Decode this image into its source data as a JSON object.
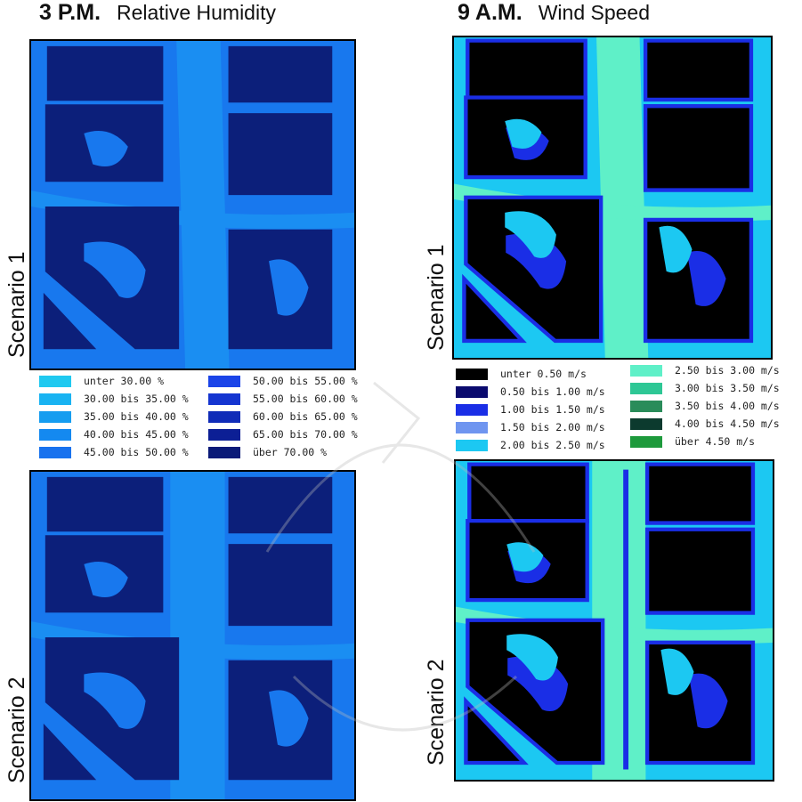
{
  "panels": {
    "left": {
      "time": "3 P.M.",
      "variable": "Relative Humidity"
    },
    "right": {
      "time": "9 A.M.",
      "variable": "Wind Speed"
    }
  },
  "scenarios": [
    "Scenario 1",
    "Scenario 2"
  ],
  "legends": {
    "humidity": [
      {
        "label": "unter 30.00 %",
        "color": "#1fc9f0"
      },
      {
        "label": "30.00 bis 35.00 %",
        "color": "#19b3f2"
      },
      {
        "label": "35.00 bis 40.00 %",
        "color": "#169df0"
      },
      {
        "label": "40.00 bis 45.00 %",
        "color": "#1489f0"
      },
      {
        "label": "45.00 bis 50.00 %",
        "color": "#1872ee"
      },
      {
        "label": "50.00 bis 55.00 %",
        "color": "#1a44e8"
      },
      {
        "label": "55.00 bis 60.00 %",
        "color": "#1535d0"
      },
      {
        "label": "60.00 bis 65.00 %",
        "color": "#102cb8"
      },
      {
        "label": "65.00 bis 70.00 %",
        "color": "#0c1f95"
      },
      {
        "label": "über 70.00 %",
        "color": "#0a1a78"
      }
    ],
    "wind": [
      {
        "label": "unter 0.50 m/s",
        "color": "#000000"
      },
      {
        "label": "0.50 bis 1.00 m/s",
        "color": "#0a0a6e"
      },
      {
        "label": "1.00 bis 1.50 m/s",
        "color": "#1a2ee6"
      },
      {
        "label": "1.50 bis 2.00 m/s",
        "color": "#6f95f0"
      },
      {
        "label": "2.00 bis 2.50 m/s",
        "color": "#1cc8f2"
      },
      {
        "label": "2.50 bis 3.00 m/s",
        "color": "#5ff0c8"
      },
      {
        "label": "3.00 bis 3.50 m/s",
        "color": "#2ec795"
      },
      {
        "label": "3.50 bis 4.00 m/s",
        "color": "#2a8c5a"
      },
      {
        "label": "4.00 bis 4.50 m/s",
        "color": "#0c3a2e"
      },
      {
        "label": "über 4.50 m/s",
        "color": "#1e9a3c"
      }
    ]
  },
  "colors": {
    "humidity_base": "#1878ee",
    "humidity_street": "#1a8ef2",
    "humidity_block": "#0c1f7a",
    "wind_base": "#1cc8f2",
    "wind_flow": "#5ff0c8",
    "wind_block": "#000000",
    "wind_lee": "#1a2ee6"
  }
}
